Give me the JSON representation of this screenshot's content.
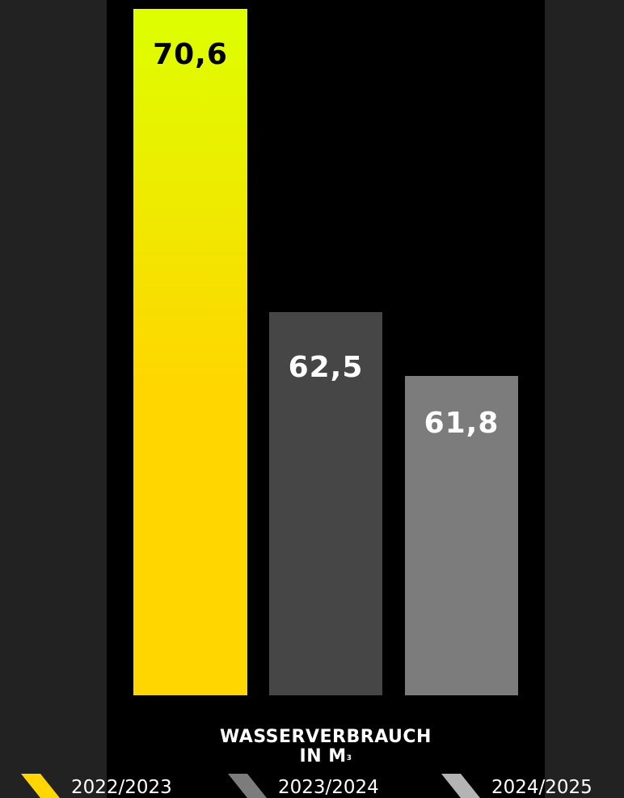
{
  "colors": {
    "background": "#222222",
    "panel": "#000000",
    "bar_2022": "#ffd600",
    "bar_2022_top": "#ddff00",
    "bar_2023": "#464646",
    "bar_2024": "#7c7c7c",
    "label_dark": "#000000",
    "label_light": "#ffffff"
  },
  "chart_data": {
    "type": "bar",
    "title_main": "WASSERVERBRAUCH",
    "title_unit": "IN M",
    "title_unit_sup": "3",
    "categories": [
      "2022/2023",
      "2023/2024",
      "2024/2025"
    ],
    "values": [
      70.6,
      62.5,
      61.8
    ],
    "value_labels": [
      "70,6",
      "62,5",
      "61,8"
    ],
    "ylim": [
      0,
      70.6
    ],
    "legend": [
      "2022/2023",
      "2023/2024",
      "2024/2025"
    ],
    "legend_position": "bottom",
    "grid": false
  }
}
